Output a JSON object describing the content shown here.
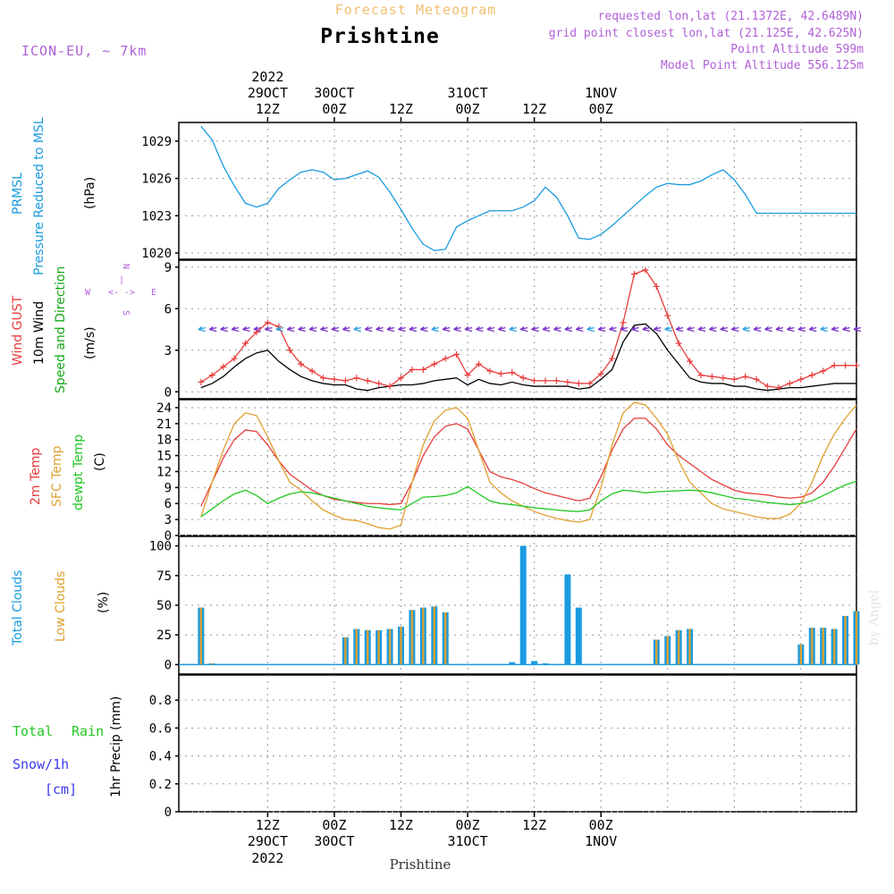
{
  "header": {
    "supertitle": "Forecast Meteogram",
    "title": "Prishtine",
    "model": "ICON-EU, ~ 7km",
    "requested": "requested lon,lat (21.1372E, 42.6489N)",
    "gridpoint": "grid point closest lon,lat (21.125E, 42.625N)",
    "altitude": "Point Altitude 599m",
    "model_altitude": "Model Point Altitude 556.125m",
    "footer_location": "Prishtine",
    "watermark": "by Angel"
  },
  "colors": {
    "pressure": "#1a9be0",
    "gust": "#e83c3c",
    "wind": "#000000",
    "dir_label": "#18a818",
    "t2m": "#e83c3c",
    "tsfc": "#e0a030",
    "dewpt": "#22c822",
    "total_clouds": "#1a9be0",
    "low_clouds": "#d9a030",
    "rain": "#22c822",
    "snow": "#3a3af0",
    "header_purple": "#b060d8",
    "header_orange": "#f0c070"
  },
  "time_axis": {
    "top": {
      "year": "2022",
      "ticks": [
        {
          "l1": "29OCT",
          "l2": "12Z"
        },
        {
          "l1": "30OCT",
          "l2": "00Z"
        },
        {
          "l1": "",
          "l2": "12Z"
        },
        {
          "l1": "31OCT",
          "l2": "00Z"
        },
        {
          "l1": "",
          "l2": "12Z"
        },
        {
          "l1": "1NOV",
          "l2": "00Z"
        }
      ]
    },
    "bottom": {
      "year": "2022",
      "ticks": [
        {
          "l1": "12Z",
          "l2": "29OCT"
        },
        {
          "l1": "00Z",
          "l2": "30OCT"
        },
        {
          "l1": "12Z",
          "l2": ""
        },
        {
          "l1": "00Z",
          "l2": "31OCT"
        },
        {
          "l1": "12Z",
          "l2": ""
        },
        {
          "l1": "00Z",
          "l2": "1NOV"
        }
      ]
    }
  },
  "panels": {
    "pressure": {
      "label1": "PRMSL",
      "label2": "Pressure Reduced to MSL",
      "unit": "(hPa)",
      "ticks": [
        "1029",
        "1026",
        "1023",
        "1020"
      ]
    },
    "wind": {
      "label_gust": "Wind GUST",
      "label_wind": "10m Wind",
      "label_dir": "Speed and Direction",
      "unit": "(m/s)",
      "ticks": [
        "9",
        "6",
        "3",
        "0"
      ],
      "compass": {
        "n": "N",
        "s": "S",
        "w": "W",
        "e": "E",
        "glyph_v": "|",
        "glyph_h": "<- ->"
      }
    },
    "temp": {
      "label_t2m": "2m Temp",
      "label_tsfc": "SFC Temp",
      "label_dew": "dewpt Temp",
      "unit": "(C)",
      "ticks": [
        "24",
        "21",
        "18",
        "15",
        "12",
        "9",
        "6",
        "3",
        "0"
      ]
    },
    "clouds": {
      "label_total": "Total Clouds",
      "label_low": "Low Clouds",
      "unit": "(%)",
      "ticks": [
        "100",
        "75",
        "50",
        "25",
        "0"
      ]
    },
    "precip": {
      "label_rain1": "Total",
      "label_rain2": "Rain",
      "label_snow": "Snow/1h",
      "label_snow_unit": "[cm]",
      "axis_label": "1hr Precip (mm)",
      "ticks": [
        "0.8",
        "0.6",
        "0.4",
        "0.2",
        "0"
      ]
    }
  },
  "chart_data": [
    {
      "type": "line",
      "hours": [
        0,
        2,
        4,
        6,
        8,
        10,
        12,
        14,
        16,
        18,
        20,
        22,
        24,
        26,
        28,
        30,
        32,
        34,
        36,
        38,
        40,
        42,
        44,
        46,
        48,
        50,
        52,
        54,
        56,
        58,
        60,
        62,
        64,
        66,
        68,
        70,
        72,
        74,
        76,
        78,
        80,
        82,
        84,
        86,
        88,
        90,
        92,
        94,
        96,
        98,
        100,
        102,
        104,
        106,
        108,
        110,
        112,
        114,
        116,
        118
      ],
      "ylabel": "(hPa)",
      "ylim": [
        1019.5,
        1030.5
      ],
      "series": [
        {
          "name": "PRMSL",
          "values": [
            1030.2,
            1029.1,
            1027.0,
            1025.4,
            1024.0,
            1023.7,
            1024.0,
            1025.2,
            1025.9,
            1026.5,
            1026.7,
            1026.5,
            1025.9,
            1026.0,
            1026.3,
            1026.6,
            1026.1,
            1024.9,
            1023.5,
            1022.0,
            1020.7,
            1020.2,
            1020.3,
            1022.1,
            1022.6,
            1023.0,
            1023.4,
            1023.4,
            1023.4,
            1023.7,
            1024.2,
            1025.3,
            1024.5,
            1023.0,
            1021.2,
            1021.1,
            1021.5,
            1022.2,
            1023.0,
            1023.8,
            1024.6,
            1025.3,
            1025.6,
            1025.5,
            1025.5,
            1025.8,
            1026.3,
            1026.7,
            1025.9,
            1024.7,
            1023.2,
            1023.2,
            1023.2,
            1023.2,
            1023.2,
            1023.2,
            1023.2,
            1023.2,
            1023.2,
            1023.2
          ]
        }
      ]
    },
    {
      "type": "line",
      "hours": [
        0,
        2,
        4,
        6,
        8,
        10,
        12,
        14,
        16,
        18,
        20,
        22,
        24,
        26,
        28,
        30,
        32,
        34,
        36,
        38,
        40,
        42,
        44,
        46,
        48,
        50,
        52,
        54,
        56,
        58,
        60,
        62,
        64,
        66,
        68,
        70,
        72,
        74,
        76,
        78,
        80,
        82,
        84,
        86,
        88,
        90,
        92,
        94,
        96,
        98,
        100,
        102,
        104,
        106,
        108,
        110,
        112,
        114,
        116,
        118
      ],
      "ylabel": "(m/s)",
      "ylim": [
        -0.5,
        9.5
      ],
      "series": [
        {
          "name": "Wind GUST",
          "values": [
            0.7,
            1.2,
            1.8,
            2.4,
            3.5,
            4.3,
            5.0,
            4.7,
            3.0,
            2.0,
            1.5,
            1.0,
            0.9,
            0.8,
            1.0,
            0.8,
            0.6,
            0.4,
            1.0,
            1.6,
            1.6,
            2.0,
            2.4,
            2.7,
            1.2,
            2.0,
            1.5,
            1.3,
            1.4,
            1.0,
            0.8,
            0.8,
            0.8,
            0.7,
            0.6,
            0.6,
            1.3,
            2.4,
            5.0,
            8.5,
            8.8,
            7.6,
            5.5,
            3.5,
            2.2,
            1.2,
            1.1,
            1.0,
            0.9,
            1.1,
            0.9,
            0.4,
            0.3,
            0.6,
            0.9,
            1.2,
            1.5,
            1.9,
            1.9,
            1.9
          ]
        },
        {
          "name": "10m Wind",
          "values": [
            0.3,
            0.6,
            1.1,
            1.8,
            2.4,
            2.8,
            3.0,
            2.2,
            1.6,
            1.1,
            0.8,
            0.6,
            0.5,
            0.5,
            0.2,
            0.1,
            0.3,
            0.4,
            0.5,
            0.5,
            0.6,
            0.8,
            0.9,
            1.0,
            0.5,
            0.9,
            0.6,
            0.5,
            0.7,
            0.5,
            0.4,
            0.4,
            0.4,
            0.4,
            0.2,
            0.3,
            0.9,
            1.6,
            3.6,
            4.8,
            4.9,
            4.2,
            3.0,
            2.0,
            1.0,
            0.7,
            0.6,
            0.6,
            0.4,
            0.4,
            0.2,
            0.1,
            0.2,
            0.3,
            0.3,
            0.4,
            0.5,
            0.6,
            0.6,
            0.6
          ]
        }
      ]
    },
    {
      "type": "line",
      "hours": [
        0,
        2,
        4,
        6,
        8,
        10,
        12,
        14,
        16,
        18,
        20,
        22,
        24,
        26,
        28,
        30,
        32,
        34,
        36,
        38,
        40,
        42,
        44,
        46,
        48,
        50,
        52,
        54,
        56,
        58,
        60,
        62,
        64,
        66,
        68,
        70,
        72,
        74,
        76,
        78,
        80,
        82,
        84,
        86,
        88,
        90,
        92,
        94,
        96,
        98,
        100,
        102,
        104,
        106,
        108,
        110,
        112,
        114,
        116,
        118
      ],
      "ylabel": "(C)",
      "ylim": [
        0,
        25.5
      ],
      "series": [
        {
          "name": "2m Temp",
          "values": [
            5.5,
            10.0,
            14.5,
            18.0,
            19.8,
            19.5,
            17.0,
            14.0,
            11.5,
            10.0,
            8.5,
            7.5,
            6.8,
            6.5,
            6.2,
            6.0,
            6.0,
            5.8,
            6.0,
            10.0,
            15.0,
            18.5,
            20.5,
            21.0,
            20.0,
            16.0,
            12.0,
            11.0,
            10.5,
            9.8,
            8.8,
            8.0,
            7.5,
            7.0,
            6.5,
            7.0,
            11.0,
            16.0,
            20.0,
            22.0,
            22.0,
            20.0,
            17.0,
            15.0,
            13.5,
            12.0,
            10.5,
            9.5,
            8.5,
            8.0,
            7.8,
            7.6,
            7.2,
            7.0,
            7.2,
            8.0,
            10.0,
            13.0,
            16.5,
            20.0
          ]
        },
        {
          "name": "SFC Temp",
          "values": [
            3.5,
            10.0,
            16.0,
            21.0,
            23.0,
            22.5,
            18.5,
            14.0,
            10.0,
            8.5,
            6.5,
            4.8,
            3.8,
            3.0,
            2.8,
            2.2,
            1.5,
            1.2,
            2.0,
            10.0,
            17.0,
            21.5,
            23.5,
            24.0,
            22.0,
            16.0,
            10.0,
            8.0,
            6.5,
            5.5,
            4.5,
            3.8,
            3.2,
            2.8,
            2.5,
            3.0,
            9.0,
            17.0,
            23.0,
            25.0,
            24.5,
            22.0,
            19.0,
            14.0,
            10.0,
            8.0,
            6.0,
            5.0,
            4.5,
            4.0,
            3.5,
            3.2,
            3.2,
            4.0,
            6.0,
            10.0,
            15.0,
            19.0,
            22.0,
            24.5
          ]
        },
        {
          "name": "dewpt Temp",
          "values": [
            3.5,
            5.0,
            6.5,
            7.8,
            8.5,
            7.5,
            6.0,
            7.0,
            7.8,
            8.2,
            8.0,
            7.5,
            7.0,
            6.5,
            6.0,
            5.5,
            5.2,
            5.0,
            4.8,
            6.0,
            7.2,
            7.3,
            7.5,
            8.0,
            9.2,
            7.8,
            6.5,
            6.0,
            5.8,
            5.5,
            5.2,
            5.0,
            4.8,
            4.6,
            4.5,
            4.8,
            6.5,
            7.8,
            8.5,
            8.3,
            8.0,
            8.2,
            8.3,
            8.4,
            8.5,
            8.4,
            8.0,
            7.5,
            7.0,
            6.8,
            6.5,
            6.2,
            6.0,
            5.8,
            6.0,
            6.5,
            7.5,
            8.5,
            9.5,
            10.2
          ]
        }
      ]
    },
    {
      "type": "bar",
      "hours": [
        0,
        2,
        4,
        6,
        8,
        10,
        12,
        14,
        16,
        18,
        20,
        22,
        24,
        26,
        28,
        30,
        32,
        34,
        36,
        38,
        40,
        42,
        44,
        46,
        48,
        50,
        52,
        54,
        56,
        58,
        60,
        62,
        64,
        66,
        68,
        70,
        72,
        74,
        76,
        78,
        80,
        82,
        84,
        86,
        88,
        90,
        92,
        94,
        96,
        98,
        100,
        102,
        104,
        106,
        108,
        110,
        112,
        114,
        116,
        118
      ],
      "ylabel": "(%)",
      "ylim": [
        -8,
        108
      ],
      "series": [
        {
          "name": "Total Clouds",
          "values": [
            48,
            1,
            0,
            0,
            0,
            0,
            0,
            0,
            0,
            0,
            0,
            0,
            0,
            23,
            30,
            29,
            29,
            30,
            32,
            46,
            48,
            49,
            44,
            0,
            0,
            0,
            0,
            0,
            2,
            100,
            3,
            1,
            0,
            76,
            48,
            0,
            0,
            0,
            0,
            0,
            0,
            21,
            24,
            29,
            30,
            0,
            0,
            0,
            0,
            0,
            0,
            0,
            0,
            0,
            17,
            31,
            31,
            30,
            41,
            45
          ]
        },
        {
          "name": "Low Clouds",
          "values": [
            48,
            1,
            0,
            0,
            0,
            0,
            0,
            0,
            0,
            0,
            0,
            0,
            0,
            23,
            30,
            29,
            29,
            30,
            32,
            46,
            48,
            49,
            44,
            0,
            0,
            0,
            0,
            0,
            0,
            0,
            0,
            0,
            0,
            0,
            0,
            0,
            0,
            0,
            0,
            0,
            0,
            21,
            24,
            29,
            30,
            0,
            0,
            0,
            0,
            0,
            0,
            0,
            0,
            0,
            17,
            31,
            31,
            30,
            41,
            45
          ]
        }
      ]
    },
    {
      "type": "bar",
      "hours": [
        0,
        2,
        4,
        6,
        8,
        10,
        12,
        14,
        16,
        18,
        20,
        22,
        24,
        26,
        28,
        30,
        32,
        34,
        36,
        38,
        40,
        42,
        44,
        46,
        48,
        50,
        52,
        54,
        56,
        58,
        60,
        62,
        64,
        66,
        68,
        70,
        72,
        74,
        76,
        78,
        80,
        82,
        84,
        86,
        88,
        90,
        92,
        94,
        96,
        98,
        100,
        102,
        104,
        106,
        108,
        110,
        112,
        114,
        116,
        118
      ],
      "ylabel": "1hr Precip (mm)",
      "ylim": [
        0,
        0.98
      ],
      "series": [
        {
          "name": "Total Rain",
          "values": [
            0,
            0,
            0,
            0,
            0,
            0,
            0,
            0,
            0,
            0,
            0,
            0,
            0,
            0,
            0,
            0,
            0,
            0,
            0,
            0,
            0,
            0,
            0,
            0,
            0,
            0,
            0,
            0,
            0,
            0,
            0,
            0,
            0,
            0,
            0,
            0,
            0,
            0,
            0,
            0,
            0,
            0,
            0,
            0,
            0,
            0,
            0,
            0,
            0,
            0,
            0,
            0,
            0,
            0,
            0,
            0,
            0,
            0,
            0,
            0
          ]
        }
      ]
    }
  ]
}
